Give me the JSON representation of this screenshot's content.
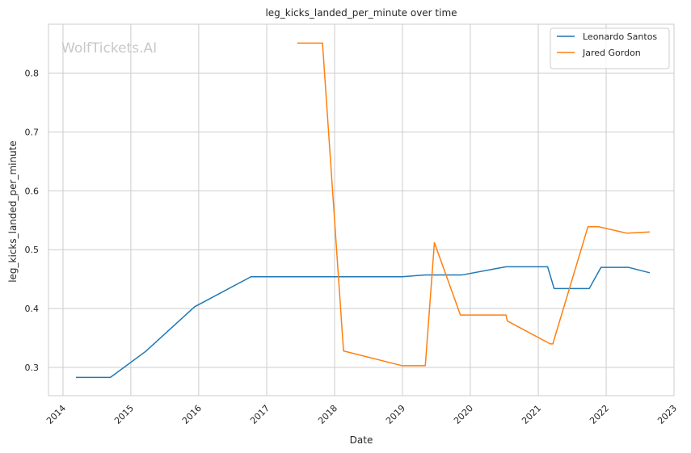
{
  "watermark": "WolfTickets.AI",
  "chart_data": {
    "type": "line",
    "title": "leg_kicks_landed_per_minute over time",
    "xlabel": "Date",
    "ylabel": "leg_kicks_landed_per_minute",
    "x_type": "date",
    "xlim": [
      "2013-10-15",
      "2023-01-01"
    ],
    "ylim": [
      0.252,
      0.883
    ],
    "x_ticks": [
      "2014",
      "2015",
      "2016",
      "2017",
      "2018",
      "2019",
      "2020",
      "2021",
      "2022",
      "2023"
    ],
    "y_ticks": [
      0.3,
      0.4,
      0.5,
      0.6,
      0.7,
      0.8
    ],
    "grid": true,
    "legend_position": "top-right",
    "series": [
      {
        "name": "Leonardo Santos",
        "color": "#1f77b4",
        "points": [
          [
            "2014-03-15",
            0.283
          ],
          [
            "2014-09-13",
            0.283
          ],
          [
            "2015-03-21",
            0.327
          ],
          [
            "2015-12-10",
            0.403
          ],
          [
            "2016-10-08",
            0.454
          ],
          [
            "2018-12-29",
            0.454
          ],
          [
            "2019-05-04",
            0.457
          ],
          [
            "2019-11-16",
            0.457
          ],
          [
            "2020-07-11",
            0.471
          ],
          [
            "2021-02-20",
            0.471
          ],
          [
            "2021-03-27",
            0.434
          ],
          [
            "2021-10-02",
            0.434
          ],
          [
            "2021-12-04",
            0.47
          ],
          [
            "2022-04-30",
            0.47
          ],
          [
            "2022-08-20",
            0.461
          ]
        ]
      },
      {
        "name": "Jared Gordon",
        "color": "#ff7f0e",
        "points": [
          [
            "2017-06-17",
            0.851
          ],
          [
            "2017-10-28",
            0.851
          ],
          [
            "2018-02-18",
            0.328
          ],
          [
            "2018-12-29",
            0.303
          ],
          [
            "2019-05-04",
            0.303
          ],
          [
            "2019-06-22",
            0.512
          ],
          [
            "2019-11-09",
            0.389
          ],
          [
            "2020-07-11",
            0.389
          ],
          [
            "2020-07-18",
            0.379
          ],
          [
            "2021-03-06",
            0.34
          ],
          [
            "2021-03-20",
            0.34
          ],
          [
            "2021-09-25",
            0.539
          ],
          [
            "2021-11-20",
            0.539
          ],
          [
            "2022-04-23",
            0.528
          ],
          [
            "2022-08-20",
            0.53
          ]
        ]
      }
    ]
  }
}
